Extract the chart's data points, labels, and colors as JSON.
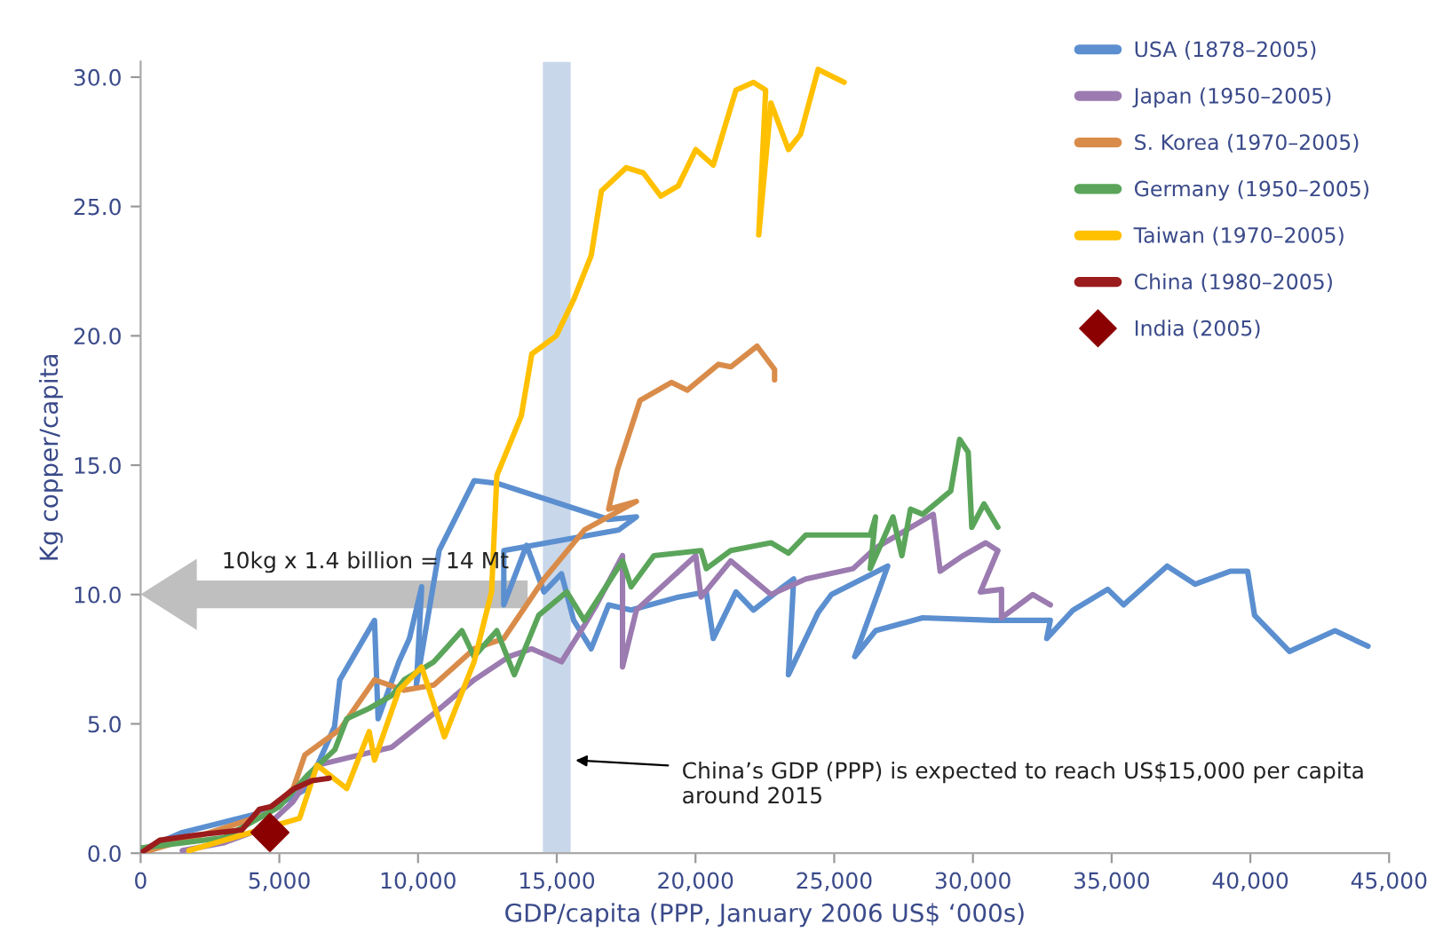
{
  "chart_data": {
    "type": "line",
    "xlabel": "GDP/capita (PPP, January 2006 US$ ‘000s)",
    "ylabel": "Kg copper/capita",
    "xlim": [
      0,
      45000
    ],
    "ylim": [
      0,
      30.6
    ],
    "xticks": [
      {
        "value": 0,
        "label": "0"
      },
      {
        "value": 5000,
        "label": "5,000"
      },
      {
        "value": 10000,
        "label": "10,000"
      },
      {
        "value": 15000,
        "label": "15,000"
      },
      {
        "value": 20000,
        "label": "20,000"
      },
      {
        "value": 25000,
        "label": "25,000"
      },
      {
        "value": 30000,
        "label": "30,000"
      },
      {
        "value": 35000,
        "label": "35,000"
      },
      {
        "value": 40000,
        "label": "40,000"
      },
      {
        "value": 45000,
        "label": "45,000"
      }
    ],
    "yticks": [
      {
        "value": 0,
        "label": "0.0"
      },
      {
        "value": 5,
        "label": "5.0"
      },
      {
        "value": 10,
        "label": "10.0"
      },
      {
        "value": 15,
        "label": "15.0"
      },
      {
        "value": 20,
        "label": "20.0"
      },
      {
        "value": 25,
        "label": "25.0"
      },
      {
        "value": 30,
        "label": "30.0"
      }
    ],
    "grid": false,
    "legend": "top right",
    "marker": "none",
    "line_style": "solid",
    "series": [
      {
        "name": "USA (1878–2005)",
        "color": "#5b8fd0",
        "x": [
          0,
          1500,
          3000,
          4500,
          6000,
          6990,
          7180,
          8430,
          8560,
          9310,
          9690,
          10130,
          9940,
          10760,
          12020,
          12840,
          16870,
          17870,
          17240,
          13090,
          13090,
          13910,
          14540,
          15170,
          15610,
          16240,
          16870,
          17680,
          19380,
          20390,
          20640,
          21460,
          22090,
          23160,
          23540,
          23350,
          24420,
          24900,
          26930,
          25740,
          26490,
          28190,
          30710,
          32790,
          32660,
          33610,
          34860,
          35430,
          37000,
          38010,
          39270,
          39900,
          40150,
          41410,
          43050,
          44240
        ],
        "values": [
          0.1,
          0.8,
          1.2,
          1.6,
          2.5,
          4.9,
          6.7,
          9.0,
          5.2,
          7.4,
          8.3,
          10.3,
          6.5,
          11.7,
          14.4,
          14.3,
          12.9,
          13.0,
          12.5,
          11.7,
          9.6,
          11.9,
          10.1,
          10.8,
          9.0,
          7.9,
          9.6,
          9.4,
          9.9,
          10.1,
          8.3,
          10.1,
          9.4,
          10.3,
          10.6,
          6.9,
          9.3,
          10.0,
          11.1,
          7.6,
          8.6,
          9.1,
          9.0,
          9.0,
          8.3,
          9.4,
          10.2,
          9.6,
          11.1,
          10.4,
          10.9,
          10.9,
          9.2,
          7.8,
          8.6,
          8.0
        ]
      },
      {
        "name": "Japan (1950–2005)",
        "color": "#9b7bb0",
        "x": [
          1500,
          3000,
          4500,
          5500,
          6360,
          9060,
          10570,
          12020,
          13280,
          14100,
          15170,
          15990,
          16430,
          17370,
          17370,
          17870,
          20010,
          20200,
          21270,
          22720,
          23980,
          25680,
          26490,
          28570,
          28820,
          29640,
          30460,
          30900,
          30270,
          31030,
          31030,
          32160,
          32790
        ],
        "values": [
          0.1,
          0.4,
          1.0,
          2.0,
          3.4,
          4.1,
          5.4,
          6.7,
          7.6,
          7.9,
          7.4,
          8.8,
          9.6,
          11.5,
          7.2,
          9.4,
          11.5,
          9.9,
          11.3,
          10.0,
          10.6,
          11.0,
          11.8,
          13.1,
          10.9,
          11.5,
          12.0,
          11.7,
          10.1,
          10.2,
          9.1,
          10.0,
          9.6
        ]
      },
      {
        "name": "S. Korea (1970–2005)",
        "color": "#d98c4a",
        "x": [
          300,
          2500,
          4500,
          5500,
          5920,
          7200,
          8430,
          9500,
          10570,
          12020,
          13090,
          14540,
          16000,
          17870,
          16870,
          17180,
          18000,
          19130,
          19700,
          20830,
          21270,
          22220,
          22850,
          22850
        ],
        "values": [
          0.1,
          0.8,
          1.5,
          2.5,
          3.8,
          4.8,
          6.7,
          6.3,
          6.5,
          7.9,
          8.3,
          10.6,
          12.5,
          13.6,
          13.3,
          14.8,
          17.5,
          18.2,
          17.9,
          18.9,
          18.8,
          19.6,
          18.7,
          18.3
        ]
      },
      {
        "name": "Germany (1950–2005)",
        "color": "#5aa55a",
        "x": [
          0,
          3000,
          5000,
          6000,
          7000,
          7430,
          8240,
          9060,
          9500,
          10570,
          11580,
          12020,
          12840,
          13470,
          14350,
          15360,
          15990,
          17370,
          17680,
          18500,
          20200,
          20390,
          21270,
          22720,
          23350,
          23980,
          26300,
          26490,
          26300,
          27120,
          27440,
          27750,
          28190,
          29200,
          29520,
          29830,
          29960,
          30400,
          30900
        ],
        "values": [
          0.2,
          0.6,
          1.8,
          3.0,
          4.0,
          5.2,
          5.6,
          6.1,
          6.7,
          7.4,
          8.6,
          7.6,
          8.6,
          6.9,
          9.2,
          10.1,
          9.0,
          11.3,
          10.3,
          11.5,
          11.7,
          11.0,
          11.7,
          12.0,
          11.6,
          12.3,
          12.3,
          13.0,
          11.0,
          13.0,
          11.5,
          13.3,
          13.1,
          14.0,
          16.0,
          15.5,
          12.6,
          13.5,
          12.6
        ]
      },
      {
        "name": "Taiwan (1970–2005)",
        "color": "#ffc000",
        "x": [
          1740,
          5730,
          6360,
          7430,
          8240,
          8430,
          9310,
          10130,
          10950,
          12020,
          12650,
          12840,
          13720,
          14100,
          14980,
          15610,
          16240,
          16610,
          17500,
          18120,
          18750,
          19380,
          20010,
          20640,
          21460,
          22090,
          22530,
          22280,
          22720,
          23350,
          23790,
          24420,
          25360
        ],
        "values": [
          0.1,
          1.35,
          3.4,
          2.5,
          4.7,
          3.6,
          6.3,
          7.2,
          4.5,
          7.4,
          10.1,
          14.6,
          16.9,
          19.3,
          20.0,
          21.4,
          23.1,
          25.6,
          26.5,
          26.3,
          25.4,
          25.8,
          27.2,
          26.6,
          29.5,
          29.8,
          29.5,
          23.9,
          29.0,
          27.2,
          27.8,
          30.3,
          29.8
        ]
      },
      {
        "name": "China (1980–2005)",
        "color": "#9b1c1c",
        "x": [
          0,
          690,
          2000,
          3650,
          4280,
          4700,
          5540,
          6170,
          6800
        ],
        "values": [
          0,
          0.5,
          0.7,
          0.9,
          1.7,
          1.8,
          2.5,
          2.8,
          2.9
        ]
      },
      {
        "name": "India (2005)",
        "type": "scatter",
        "marker": "diamond",
        "color": "#8b0000",
        "x": [
          4660
        ],
        "values": [
          0.8
        ]
      }
    ],
    "bands": [
      {
        "axis": "x",
        "from": 14500,
        "to": 15500,
        "color": "#c9d7ea"
      }
    ],
    "annotations": [
      "10kg x 1.4 billion = 14 Mt",
      {
        "text": "China’s GDP (PPP) is expected to reach US$15,000 per capita\naround 2015",
        "x": 15500,
        "y": 3.6
      }
    ]
  }
}
